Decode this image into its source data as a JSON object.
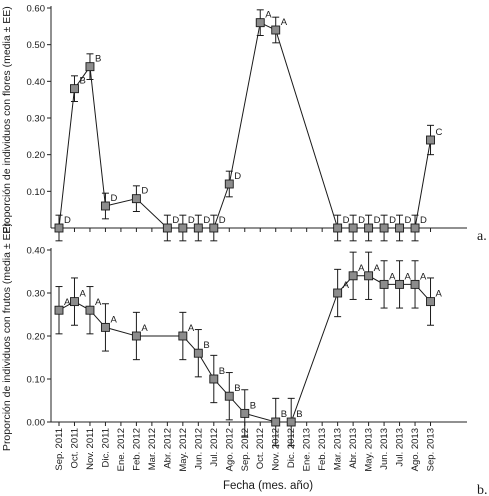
{
  "x_axis": {
    "label": "Fecha (mes. año)",
    "ticks": [
      "Sep. 2011",
      "Oct. 2011",
      "Nov. 2011",
      "Dic. 2011",
      "Ene. 2012",
      "Feb. 2012",
      "Mar. 2012",
      "Abr. 2012",
      "May. 2012",
      "Jun. 2012",
      "Jul. 2012",
      "Ago. 2012",
      "Sep. 2012",
      "Oct. 2012",
      "Nov. 2012",
      "Dic. 2012",
      "Ene. 2013",
      "Feb. 2013",
      "Mar. 2013",
      "Abr. 2013",
      "May. 2013",
      "Jun. 2013",
      "Jul. 2013",
      "Ago. 2013",
      "Sep. 2013"
    ]
  },
  "chart_data": [
    {
      "type": "line",
      "panel_label": "a.",
      "ylabel": "Proporción de individuos con flores (media ± EE)",
      "ylim": [
        0,
        0.6
      ],
      "yticks": [
        "0.10",
        "0.20",
        "0.30",
        "0.40",
        "0.50",
        "0.60"
      ],
      "ytick_values": [
        0.1,
        0.2,
        0.3,
        0.4,
        0.5,
        0.6
      ],
      "points": [
        {
          "x": "Sep. 2011",
          "y": 0.0,
          "se": 0.035,
          "letter": "D"
        },
        {
          "x": "Oct. 2011",
          "y": 0.38,
          "se": 0.035,
          "letter": "B"
        },
        {
          "x": "Nov. 2011",
          "y": 0.44,
          "se": 0.035,
          "letter": "B"
        },
        {
          "x": "Dic. 2011",
          "y": 0.06,
          "se": 0.035,
          "letter": "D"
        },
        {
          "x": "Feb. 2012",
          "y": 0.08,
          "se": 0.035,
          "letter": "D"
        },
        {
          "x": "Abr. 2012",
          "y": 0.0,
          "se": 0.035,
          "letter": "D"
        },
        {
          "x": "May. 2012",
          "y": 0.0,
          "se": 0.035,
          "letter": "D"
        },
        {
          "x": "Jun. 2012",
          "y": 0.0,
          "se": 0.035,
          "letter": "D"
        },
        {
          "x": "Jul. 2012",
          "y": 0.0,
          "se": 0.035,
          "letter": "D"
        },
        {
          "x": "Ago. 2012",
          "y": 0.12,
          "se": 0.035,
          "letter": "D"
        },
        {
          "x": "Oct. 2012",
          "y": 0.56,
          "se": 0.035,
          "letter": "A"
        },
        {
          "x": "Nov. 2012",
          "y": 0.54,
          "se": 0.035,
          "letter": "A"
        },
        {
          "x": "Mar. 2013",
          "y": 0.0,
          "se": 0.035,
          "letter": "D"
        },
        {
          "x": "Abr. 2013",
          "y": 0.0,
          "se": 0.035,
          "letter": "D"
        },
        {
          "x": "May. 2013",
          "y": 0.0,
          "se": 0.035,
          "letter": "D"
        },
        {
          "x": "Jun. 2013",
          "y": 0.0,
          "se": 0.035,
          "letter": "D"
        },
        {
          "x": "Jul. 2013",
          "y": 0.0,
          "se": 0.035,
          "letter": "D"
        },
        {
          "x": "Ago. 2013",
          "y": 0.0,
          "se": 0.035,
          "letter": "D"
        },
        {
          "x": "Sep. 2013",
          "y": 0.24,
          "se": 0.04,
          "letter": "C"
        }
      ]
    },
    {
      "type": "line",
      "panel_label": "b.",
      "ylabel": "Proporción de individuos con frutos (media ± EE)",
      "ylim": [
        0,
        0.4
      ],
      "yticks": [
        "0.00",
        "0.10",
        "0.20",
        "0.30",
        "0.40"
      ],
      "ytick_values": [
        0,
        0.1,
        0.2,
        0.3,
        0.4
      ],
      "points": [
        {
          "x": "Sep. 2011",
          "y": 0.26,
          "se": 0.055,
          "letter": "A"
        },
        {
          "x": "Oct. 2011",
          "y": 0.28,
          "se": 0.055,
          "letter": "A"
        },
        {
          "x": "Nov. 2011",
          "y": 0.26,
          "se": 0.055,
          "letter": "A"
        },
        {
          "x": "Dic. 2011",
          "y": 0.22,
          "se": 0.055,
          "letter": "A"
        },
        {
          "x": "Feb. 2012",
          "y": 0.2,
          "se": 0.055,
          "letter": "A"
        },
        {
          "x": "May. 2012",
          "y": 0.2,
          "se": 0.055,
          "letter": "A"
        },
        {
          "x": "Jun. 2012",
          "y": 0.16,
          "se": 0.055,
          "letter": "B"
        },
        {
          "x": "Jul. 2012",
          "y": 0.1,
          "se": 0.055,
          "letter": "B"
        },
        {
          "x": "Ago. 2012",
          "y": 0.06,
          "se": 0.055,
          "letter": "B"
        },
        {
          "x": "Sep. 2012",
          "y": 0.02,
          "se": 0.055,
          "letter": "B"
        },
        {
          "x": "Nov. 2012",
          "y": 0.0,
          "se": 0.055,
          "letter": "B"
        },
        {
          "x": "Dic. 2012",
          "y": 0.0,
          "se": 0.055,
          "letter": "B"
        },
        {
          "x": "Mar. 2013",
          "y": 0.3,
          "se": 0.055,
          "letter": "A"
        },
        {
          "x": "Abr. 2013",
          "y": 0.34,
          "se": 0.055,
          "letter": "A"
        },
        {
          "x": "May. 2013",
          "y": 0.34,
          "se": 0.055,
          "letter": "A"
        },
        {
          "x": "Jun. 2013",
          "y": 0.32,
          "se": 0.055,
          "letter": "A"
        },
        {
          "x": "Jul. 2013",
          "y": 0.32,
          "se": 0.055,
          "letter": "A"
        },
        {
          "x": "Ago. 2013",
          "y": 0.32,
          "se": 0.055,
          "letter": "A"
        },
        {
          "x": "Sep. 2013",
          "y": 0.28,
          "se": 0.055,
          "letter": "A"
        }
      ]
    }
  ]
}
